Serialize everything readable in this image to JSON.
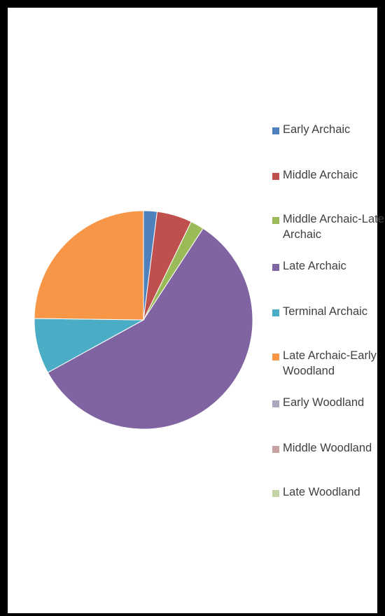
{
  "chart_data": {
    "type": "pie",
    "categories": [
      "Early Archaic",
      "Middle Archaic",
      "Middle Archaic-Late Archaic",
      "Late Archaic",
      "Terminal Archaic",
      "Late Archaic-Early Woodland",
      "Early Woodland",
      "Middle Woodland",
      "Late Woodland"
    ],
    "legend_labels": [
      "Early Archaic",
      "Middle Archaic",
      "Middle Archaic-Late\nArchaic",
      "Late Archaic",
      "Terminal Archaic",
      "Late Archaic-Early\nWoodland",
      "Early Woodland",
      "Middle Woodland",
      "Late Woodland"
    ],
    "values": [
      2,
      5.2,
      2,
      57.8,
      8.2,
      24.8,
      0,
      0,
      0
    ],
    "unit": "percent (estimated)",
    "colors": [
      "#4F81BD",
      "#C0504D",
      "#9BBB59",
      "#8064A2",
      "#4BACC6",
      "#F79646",
      "#A9A8BF",
      "#C7A2A1",
      "#C3D3A5"
    ],
    "legend_position": "right",
    "start_angle": "12 o'clock, clockwise",
    "title": ""
  }
}
